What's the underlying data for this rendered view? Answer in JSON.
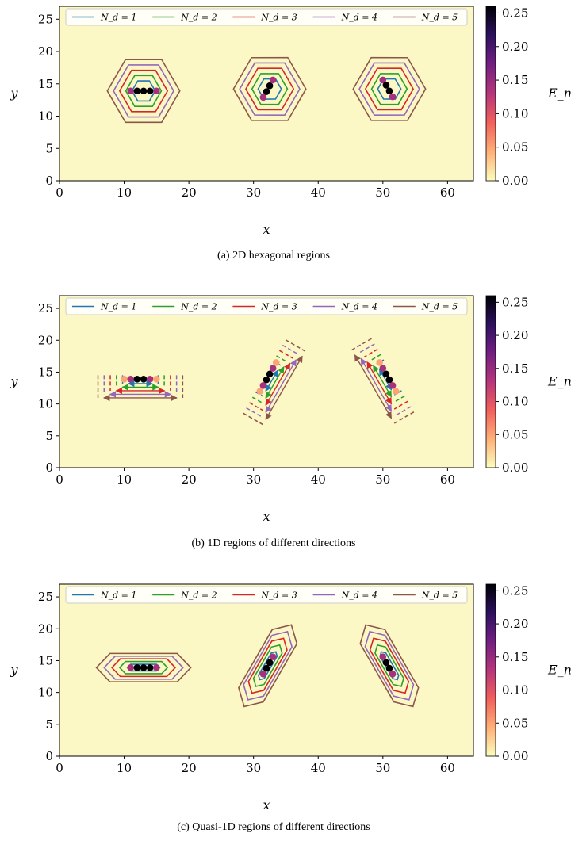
{
  "figure": {
    "colorbar": {
      "label": "E_n",
      "ticks": [
        0.0,
        0.05,
        0.1,
        0.15,
        0.2,
        0.25
      ],
      "tick_labels": [
        "0.00",
        "0.05",
        "0.10",
        "0.15",
        "0.20",
        "0.25"
      ],
      "range": [
        0,
        0.26
      ],
      "colors": [
        "#fcfdbf",
        "#feb078",
        "#f1605d",
        "#b5367a",
        "#721f81",
        "#2c115f",
        "#000004"
      ]
    },
    "legend": {
      "entries": [
        {
          "label": "N_d = 1",
          "color": "#1f77b4"
        },
        {
          "label": "N_d = 2",
          "color": "#2ca02c"
        },
        {
          "label": "N_d = 3",
          "color": "#d62728"
        },
        {
          "label": "N_d = 4",
          "color": "#9467bd"
        },
        {
          "label": "N_d = 5",
          "color": "#8c564b"
        }
      ]
    },
    "background_color": "#fbf8c6"
  },
  "chart_data": [
    {
      "type": "scatter",
      "title": "(a) 2D hexagonal regions",
      "xlabel": "x",
      "ylabel": "y",
      "xlim": [
        0,
        64
      ],
      "ylim": [
        0,
        27
      ],
      "xticks": [
        0,
        10,
        20,
        30,
        40,
        50,
        60
      ],
      "yticks": [
        0,
        5,
        10,
        15,
        20,
        25
      ],
      "grid": false,
      "legend_position": "top",
      "region_kind": "hexagon",
      "groups": [
        {
          "center": [
            13,
            13.9
          ],
          "points": [
            {
              "x": 11,
              "y": 13.9,
              "e": 0.14
            },
            {
              "x": 12,
              "y": 13.9,
              "e": 0.26
            },
            {
              "x": 13,
              "y": 13.9,
              "e": 0.26
            },
            {
              "x": 14,
              "y": 13.9,
              "e": 0.26
            },
            {
              "x": 15,
              "y": 13.9,
              "e": 0.14
            }
          ]
        },
        {
          "center": [
            32.5,
            14.2
          ],
          "angle_deg": 60,
          "points": [
            {
              "x": 31.5,
              "y": 12.9,
              "e": 0.14
            },
            {
              "x": 32.0,
              "y": 13.8,
              "e": 0.26
            },
            {
              "x": 32.5,
              "y": 14.7,
              "e": 0.26
            },
            {
              "x": 33.0,
              "y": 15.6,
              "e": 0.14
            }
          ]
        },
        {
          "center": [
            51,
            14.2
          ],
          "angle_deg": -60,
          "points": [
            {
              "x": 50,
              "y": 15.6,
              "e": 0.14
            },
            {
              "x": 50.5,
              "y": 14.8,
              "e": 0.26
            },
            {
              "x": 51,
              "y": 13.9,
              "e": 0.26
            },
            {
              "x": 51.5,
              "y": 13.0,
              "e": 0.14
            }
          ]
        }
      ]
    },
    {
      "type": "scatter",
      "title": "(b) 1D regions of different directions",
      "xlabel": "x",
      "ylabel": "y",
      "xlim": [
        0,
        64
      ],
      "ylim": [
        0,
        27
      ],
      "xticks": [
        0,
        10,
        20,
        30,
        40,
        50,
        60
      ],
      "yticks": [
        0,
        5,
        10,
        15,
        20,
        25
      ],
      "grid": false,
      "legend_position": "top",
      "region_kind": "bracket",
      "groups": [
        {
          "center": [
            12.5,
            13.9
          ],
          "angle_deg": 0,
          "points": [
            {
              "x": 10,
              "y": 13.9,
              "e": 0.05
            },
            {
              "x": 11,
              "y": 13.9,
              "e": 0.14
            },
            {
              "x": 12,
              "y": 13.9,
              "e": 0.26
            },
            {
              "x": 13,
              "y": 13.9,
              "e": 0.26
            },
            {
              "x": 14,
              "y": 13.9,
              "e": 0.14
            },
            {
              "x": 15,
              "y": 13.9,
              "e": 0.05
            }
          ]
        },
        {
          "center": [
            32.2,
            14.0
          ],
          "angle_deg": 60,
          "points": [
            {
              "x": 31.0,
              "y": 12.0,
              "e": 0.05
            },
            {
              "x": 31.5,
              "y": 12.9,
              "e": 0.14
            },
            {
              "x": 32.0,
              "y": 13.8,
              "e": 0.26
            },
            {
              "x": 32.5,
              "y": 14.7,
              "e": 0.26
            },
            {
              "x": 33.0,
              "y": 15.6,
              "e": 0.14
            },
            {
              "x": 33.5,
              "y": 16.5,
              "e": 0.05
            }
          ]
        },
        {
          "center": [
            51,
            14.2
          ],
          "angle_deg": -60,
          "points": [
            {
              "x": 49.5,
              "y": 16.5,
              "e": 0.05
            },
            {
              "x": 50.0,
              "y": 15.6,
              "e": 0.14
            },
            {
              "x": 50.5,
              "y": 14.7,
              "e": 0.26
            },
            {
              "x": 51.0,
              "y": 13.8,
              "e": 0.26
            },
            {
              "x": 51.5,
              "y": 12.9,
              "e": 0.14
            },
            {
              "x": 52.0,
              "y": 12.0,
              "e": 0.05
            }
          ]
        }
      ]
    },
    {
      "type": "scatter",
      "title": "(c) Quasi-1D regions of different directions",
      "xlabel": "x",
      "ylabel": "y",
      "xlim": [
        0,
        64
      ],
      "ylim": [
        0,
        27
      ],
      "xticks": [
        0,
        10,
        20,
        30,
        40,
        50,
        60
      ],
      "yticks": [
        0,
        5,
        10,
        15,
        20,
        25
      ],
      "grid": false,
      "legend_position": "top",
      "region_kind": "stadium",
      "groups": [
        {
          "center": [
            13,
            13.9
          ],
          "angle_deg": 0,
          "points": [
            {
              "x": 11,
              "y": 13.9,
              "e": 0.14
            },
            {
              "x": 12,
              "y": 13.9,
              "e": 0.26
            },
            {
              "x": 13,
              "y": 13.9,
              "e": 0.26
            },
            {
              "x": 14,
              "y": 13.9,
              "e": 0.26
            },
            {
              "x": 15,
              "y": 13.9,
              "e": 0.14
            }
          ]
        },
        {
          "center": [
            32.2,
            14.2
          ],
          "angle_deg": 60,
          "points": [
            {
              "x": 31.5,
              "y": 12.9,
              "e": 0.14
            },
            {
              "x": 32.0,
              "y": 13.8,
              "e": 0.26
            },
            {
              "x": 32.5,
              "y": 14.7,
              "e": 0.26
            },
            {
              "x": 33.0,
              "y": 15.6,
              "e": 0.14
            }
          ]
        },
        {
          "center": [
            51,
            14.2
          ],
          "angle_deg": -60,
          "points": [
            {
              "x": 50,
              "y": 15.6,
              "e": 0.14
            },
            {
              "x": 50.5,
              "y": 14.7,
              "e": 0.26
            },
            {
              "x": 51,
              "y": 13.8,
              "e": 0.26
            },
            {
              "x": 51.5,
              "y": 12.9,
              "e": 0.14
            }
          ]
        }
      ]
    }
  ]
}
